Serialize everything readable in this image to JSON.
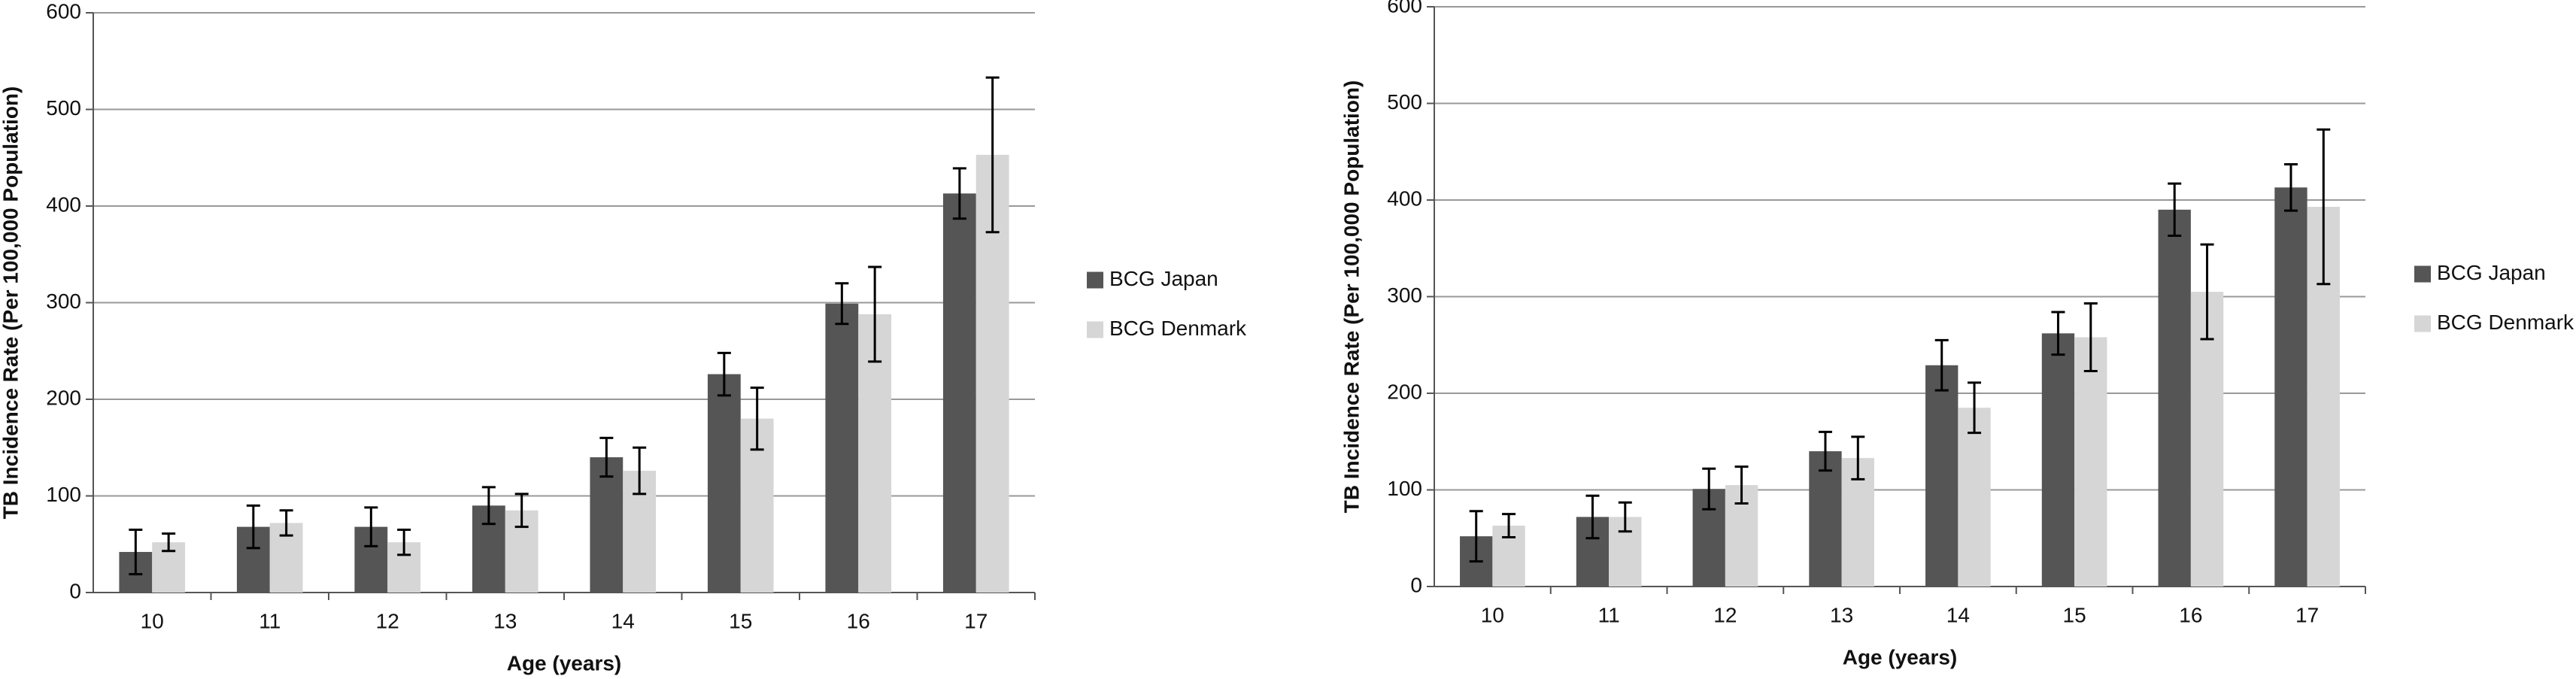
{
  "chart_data": [
    {
      "type": "bar",
      "x_label": "Age (years)",
      "y_label": "TB Incidence Rate (Per 100,000 Population)",
      "categories": [
        "10",
        "11",
        "12",
        "13",
        "14",
        "15",
        "16",
        "17"
      ],
      "series": [
        {
          "name": "BCG Japan",
          "color": "#555555",
          "values": [
            42,
            68,
            68,
            90,
            140,
            226,
            299,
            413
          ],
          "errors": [
            23,
            22,
            20,
            19,
            20,
            22,
            21,
            26
          ]
        },
        {
          "name": "BCG Denmark",
          "color": "#d6d6d6",
          "values": [
            52,
            72,
            52,
            85,
            126,
            180,
            288,
            453
          ],
          "errors": [
            9,
            13,
            13,
            17,
            24,
            32,
            49,
            80
          ]
        }
      ],
      "ylim": [
        0,
        600
      ],
      "yticks": [
        0,
        100,
        200,
        300,
        400,
        500,
        600
      ],
      "grid": true,
      "legend": "right"
    },
    {
      "type": "bar",
      "x_label": "Age (years)",
      "y_label": "TB Incidence Rate (Per 100,000 Population)",
      "categories": [
        "10",
        "11",
        "12",
        "13",
        "14",
        "15",
        "16",
        "17"
      ],
      "series": [
        {
          "name": "BCG Japan",
          "color": "#555555",
          "values": [
            52,
            72,
            101,
            140,
            229,
            262,
            390,
            413
          ],
          "errors": [
            26,
            22,
            21,
            20,
            26,
            22,
            27,
            24
          ]
        },
        {
          "name": "BCG Denmark",
          "color": "#d6d6d6",
          "values": [
            63,
            72,
            105,
            133,
            185,
            258,
            305,
            393
          ],
          "errors": [
            12,
            15,
            19,
            22,
            26,
            35,
            49,
            80
          ]
        }
      ],
      "ylim": [
        0,
        600
      ],
      "yticks": [
        0,
        100,
        200,
        300,
        400,
        500,
        600
      ],
      "grid": true,
      "legend": "right"
    }
  ]
}
